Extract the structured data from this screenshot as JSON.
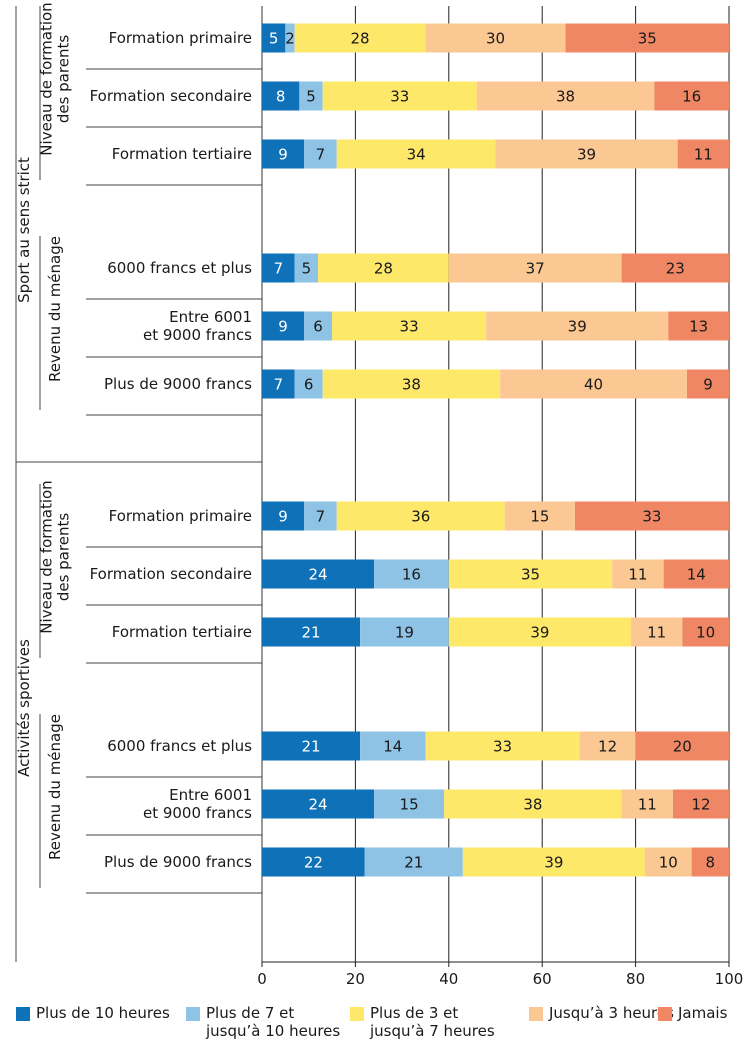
{
  "chart_data": {
    "type": "bar",
    "orientation": "horizontal",
    "stacked": true,
    "xlim": [
      0,
      100
    ],
    "xticks": [
      "0",
      "20",
      "40",
      "60",
      "80",
      "100"
    ],
    "grid": true,
    "legend_position": "bottom",
    "series": [
      {
        "name": "Plus de 10 heures",
        "color": "#0f71b7"
      },
      {
        "name": "Plus de 7 et\njusqu’à 10 heures",
        "color": "#8ec3e6"
      },
      {
        "name": "Plus de 3 et\njusqu’à 7 heures",
        "color": "#fde86a"
      },
      {
        "name": "Jusqu’à 3 heures",
        "color": "#fbc894"
      },
      {
        "name": "Jamais",
        "color": "#f08764"
      }
    ],
    "sections": [
      {
        "label": "Sport au sens strict",
        "groups": [
          {
            "label": "Niveau de formation\ndes parents",
            "rows": [
              {
                "label": "Formation primaire",
                "values": [
                  5,
                  2,
                  28,
                  30,
                  35
                ]
              },
              {
                "label": "Formation secondaire",
                "values": [
                  8,
                  5,
                  33,
                  38,
                  16
                ]
              },
              {
                "label": "Formation tertiaire",
                "values": [
                  9,
                  7,
                  34,
                  39,
                  11
                ]
              }
            ]
          },
          {
            "label": "Revenu du ménage",
            "rows": [
              {
                "label": "6000 francs et plus",
                "values": [
                  7,
                  5,
                  28,
                  37,
                  23
                ]
              },
              {
                "label": "Entre 6001\net 9000 francs",
                "values": [
                  9,
                  6,
                  33,
                  39,
                  13
                ]
              },
              {
                "label": "Plus de 9000 francs",
                "values": [
                  7,
                  6,
                  38,
                  40,
                  9
                ]
              }
            ]
          }
        ]
      },
      {
        "label": "Activités sportives",
        "groups": [
          {
            "label": "Niveau de formation\ndes parents",
            "rows": [
              {
                "label": "Formation primaire",
                "values": [
                  9,
                  7,
                  36,
                  15,
                  33
                ]
              },
              {
                "label": "Formation secondaire",
                "values": [
                  24,
                  16,
                  35,
                  11,
                  14
                ]
              },
              {
                "label": "Formation tertiaire",
                "values": [
                  21,
                  19,
                  39,
                  11,
                  10
                ]
              }
            ]
          },
          {
            "label": "Revenu du ménage",
            "rows": [
              {
                "label": "6000 francs et plus",
                "values": [
                  21,
                  14,
                  33,
                  12,
                  20
                ]
              },
              {
                "label": "Entre 6001\net 9000 francs",
                "values": [
                  24,
                  15,
                  38,
                  11,
                  12
                ]
              },
              {
                "label": "Plus de 9000 francs",
                "values": [
                  22,
                  21,
                  39,
                  10,
                  8
                ]
              }
            ]
          }
        ]
      }
    ]
  }
}
